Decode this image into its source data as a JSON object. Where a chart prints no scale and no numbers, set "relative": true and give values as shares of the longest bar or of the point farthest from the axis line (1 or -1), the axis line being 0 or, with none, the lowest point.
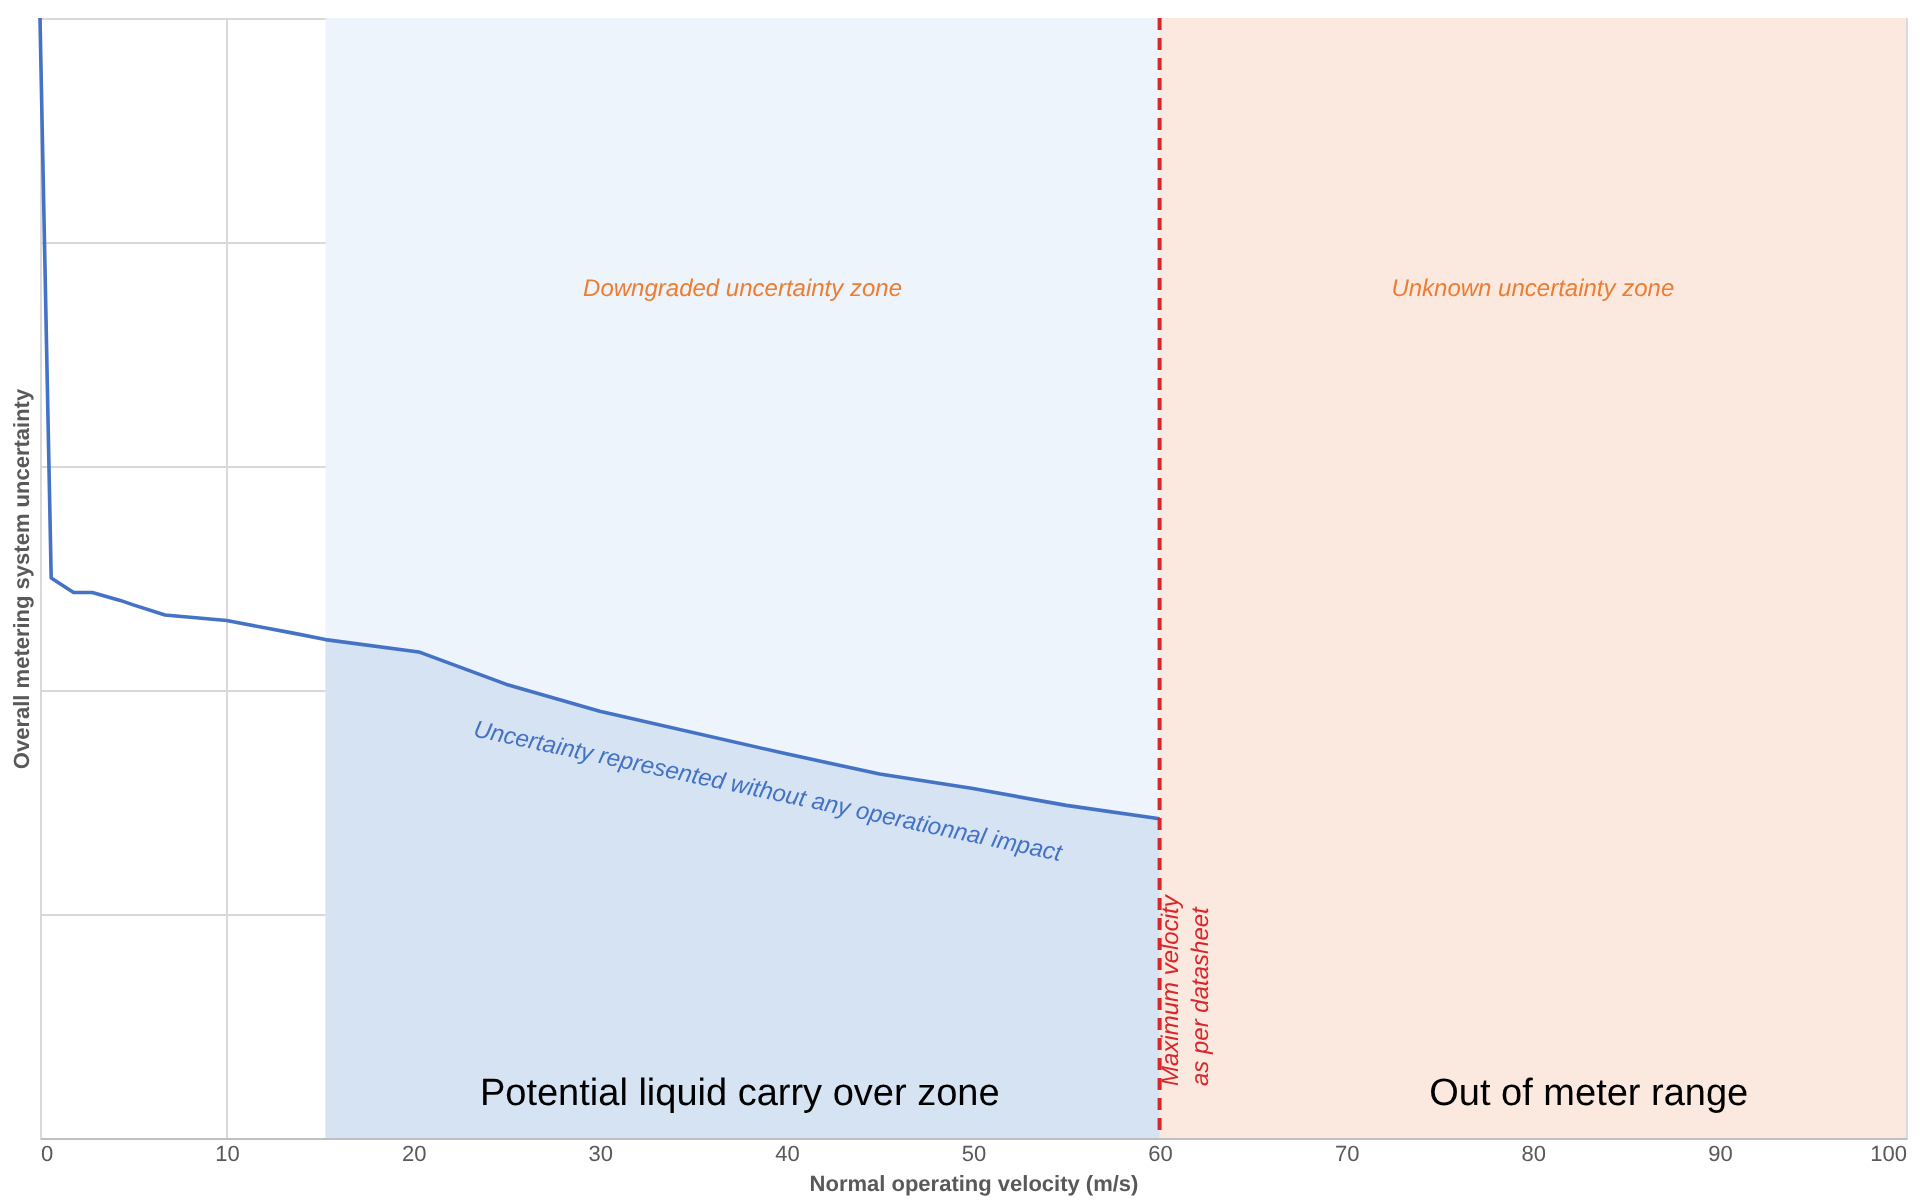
{
  "chart_data": {
    "type": "line",
    "relative": true,
    "xlabel": "Normal operating velocity (m/s)",
    "ylabel": "Overall metering system uncertainty",
    "xlim": [
      0,
      100
    ],
    "xticks": [
      0,
      10,
      20,
      30,
      40,
      50,
      60,
      70,
      80,
      90,
      100
    ],
    "grid": true,
    "legend": false,
    "tick_labels": "x",
    "series": [
      {
        "type": "area",
        "color": "#d5e3f3",
        "x": [
          15.3,
          20.3,
          25,
          30,
          40,
          45,
          50,
          55,
          60
        ],
        "values": [
          0.445,
          0.434,
          0.405,
          0.381,
          0.343,
          0.325,
          0.312,
          0.297,
          0.285
        ]
      },
      {
        "color": "#4472c4",
        "x": [
          0,
          0.6,
          1.8,
          2.8,
          4.3,
          5,
          6.7,
          10,
          13.5,
          15.3,
          20.3,
          25,
          30,
          40,
          45,
          50,
          55,
          60
        ],
        "values": [
          1.0,
          0.5,
          0.487,
          0.487,
          0.48,
          0.476,
          0.467,
          0.462,
          0.451,
          0.445,
          0.434,
          0.405,
          0.381,
          0.343,
          0.325,
          0.312,
          0.297,
          0.285
        ]
      }
    ],
    "bands": [
      {
        "axis": "x",
        "from": 15.3,
        "to": 60,
        "label": "Downgraded uncertainty zone",
        "color": "#eef4fb"
      },
      {
        "axis": "x",
        "from": 60,
        "to": 100,
        "label": "Unknown uncertainty zone",
        "color": "#fbe9df"
      }
    ],
    "ref_lines": [
      {
        "axis": "x",
        "value": 60,
        "label": "Maximum velocity as per datasheet",
        "color": "#d9262b",
        "line_style": "dashed"
      }
    ],
    "annotations": [
      "Uncertainty represented without any operationnal impact",
      "Potential liquid carry over zone",
      "Out of meter range"
    ]
  }
}
